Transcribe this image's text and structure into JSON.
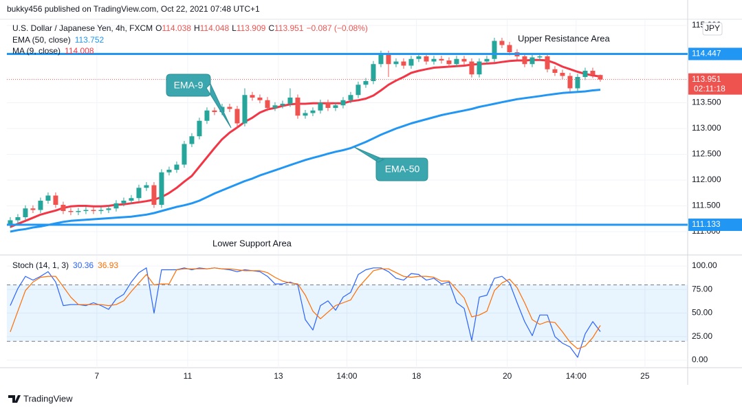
{
  "header": {
    "publisher": "bukky456 published on TradingView.com, Oct 22, 2021 07:48 UTC+1",
    "footer": "TradingView"
  },
  "chart_data": [
    {
      "type": "candlestick",
      "title": "U.S. Dollar / Japanese Yen, 4h, FXCM",
      "ohlc_letters": [
        "O",
        "H",
        "L",
        "C"
      ],
      "change_label": "−0.087 (−0.08%)",
      "currency": "JPY",
      "countdown": "02:11:18",
      "up_color": "#26a69a",
      "down_color": "#ef5350",
      "open": [
        111.13,
        111.22,
        111.28,
        111.45,
        111.42,
        111.6,
        111.7,
        111.52,
        111.4,
        111.38,
        111.4,
        111.42,
        111.4,
        111.42,
        111.45,
        111.55,
        111.6,
        111.65,
        111.85,
        111.9,
        111.52,
        112.15,
        112.2,
        112.3,
        112.7,
        112.85,
        113.15,
        113.35,
        113.32,
        113.42,
        113.38,
        113.1,
        113.65,
        113.6,
        113.55,
        113.4,
        113.45,
        113.48,
        113.6,
        113.25,
        113.3,
        113.35,
        113.5,
        113.4,
        113.45,
        113.55,
        113.65,
        113.85,
        113.92,
        114.25,
        114.45,
        114.25,
        114.3,
        114.22,
        114.35,
        114.4,
        114.3,
        114.35,
        114.32,
        114.25,
        114.35,
        114.3,
        114.05,
        114.3,
        114.35,
        114.7,
        114.62,
        114.48,
        114.4,
        114.25,
        114.38,
        114.4,
        114.15,
        114.08,
        114.02,
        113.78,
        114.0,
        114.12,
        114.038
      ],
      "high": [
        111.28,
        111.34,
        111.51,
        111.51,
        111.66,
        111.76,
        111.76,
        111.58,
        111.46,
        111.46,
        111.48,
        111.48,
        111.48,
        111.51,
        111.61,
        111.66,
        111.71,
        111.91,
        111.96,
        111.96,
        112.21,
        112.26,
        112.36,
        112.76,
        112.91,
        113.21,
        113.41,
        113.41,
        113.48,
        113.48,
        113.44,
        113.78,
        113.71,
        113.66,
        113.61,
        113.51,
        113.54,
        113.78,
        113.66,
        113.36,
        113.41,
        113.56,
        113.56,
        113.51,
        113.61,
        113.71,
        113.91,
        113.98,
        114.31,
        114.51,
        114.51,
        114.36,
        114.36,
        114.41,
        114.46,
        114.46,
        114.41,
        114.41,
        114.38,
        114.41,
        114.41,
        114.36,
        114.36,
        114.41,
        114.76,
        114.76,
        114.68,
        114.54,
        114.46,
        114.44,
        114.46,
        114.46,
        114.21,
        114.14,
        114.08,
        114.06,
        114.18,
        114.18,
        114.048
      ],
      "low": [
        111.07,
        111.16,
        111.22,
        111.36,
        111.36,
        111.54,
        111.46,
        111.34,
        111.32,
        111.32,
        111.34,
        111.34,
        111.34,
        111.36,
        111.39,
        111.49,
        111.54,
        111.59,
        111.79,
        111.46,
        111.46,
        112.09,
        112.14,
        112.24,
        112.64,
        112.79,
        113.09,
        113.26,
        113.26,
        113.32,
        113.0,
        113.04,
        113.54,
        113.49,
        113.34,
        113.34,
        113.39,
        113.42,
        113.19,
        113.19,
        113.24,
        113.29,
        113.34,
        113.34,
        113.39,
        113.49,
        113.59,
        113.79,
        113.86,
        114.19,
        114.0,
        114.19,
        114.16,
        114.16,
        114.29,
        114.24,
        114.24,
        114.26,
        114.19,
        114.19,
        114.24,
        113.99,
        113.99,
        114.24,
        114.29,
        114.56,
        114.42,
        114.34,
        114.19,
        114.19,
        114.32,
        114.09,
        114.02,
        113.96,
        113.72,
        113.72,
        113.94,
        113.98,
        113.909
      ],
      "close": [
        111.22,
        111.28,
        111.45,
        111.42,
        111.6,
        111.7,
        111.52,
        111.4,
        111.38,
        111.4,
        111.42,
        111.4,
        111.42,
        111.45,
        111.55,
        111.6,
        111.65,
        111.85,
        111.9,
        111.52,
        112.15,
        112.2,
        112.3,
        112.7,
        112.85,
        113.15,
        113.35,
        113.32,
        113.42,
        113.38,
        113.1,
        113.65,
        113.6,
        113.55,
        113.4,
        113.45,
        113.48,
        113.6,
        113.25,
        113.3,
        113.35,
        113.5,
        113.4,
        113.45,
        113.55,
        113.65,
        113.85,
        113.92,
        114.25,
        114.45,
        114.25,
        114.3,
        114.22,
        114.35,
        114.4,
        114.3,
        114.35,
        114.32,
        114.25,
        114.35,
        114.3,
        114.05,
        114.3,
        114.35,
        114.7,
        114.62,
        114.48,
        114.4,
        114.25,
        114.38,
        114.4,
        114.15,
        114.08,
        114.02,
        113.78,
        114.0,
        114.12,
        114.04,
        113.951
      ],
      "series": [
        {
          "name": "EMA (50, close)",
          "color": "#2196f3",
          "values": [
            111.0,
            111.03,
            111.05,
            111.08,
            111.1,
            111.13,
            111.16,
            111.19,
            111.21,
            111.22,
            111.23,
            111.24,
            111.25,
            111.26,
            111.27,
            111.28,
            111.29,
            111.31,
            111.33,
            111.36,
            111.4,
            111.44,
            111.48,
            111.51,
            111.55,
            111.6,
            111.67,
            111.74,
            111.8,
            111.86,
            111.92,
            111.98,
            112.03,
            112.09,
            112.14,
            112.19,
            112.24,
            112.29,
            112.34,
            112.39,
            112.43,
            112.47,
            112.51,
            112.55,
            112.58,
            112.62,
            112.68,
            112.74,
            112.81,
            112.88,
            112.94,
            113.0,
            113.05,
            113.1,
            113.14,
            113.18,
            113.22,
            113.26,
            113.29,
            113.32,
            113.35,
            113.38,
            113.42,
            113.45,
            113.48,
            113.51,
            113.54,
            113.57,
            113.59,
            113.61,
            113.63,
            113.65,
            113.67,
            113.69,
            113.7,
            113.71,
            113.72,
            113.74,
            113.752
          ]
        },
        {
          "name": "MA (9, close)",
          "color": "#f23645",
          "values": [
            111.09,
            111.15,
            111.21,
            111.27,
            111.33,
            111.37,
            111.41,
            111.46,
            111.49,
            111.5,
            111.5,
            111.49,
            111.49,
            111.5,
            111.52,
            111.53,
            111.55,
            111.57,
            111.59,
            111.62,
            111.67,
            111.75,
            111.85,
            111.97,
            112.08,
            112.26,
            112.44,
            112.62,
            112.79,
            112.92,
            113.02,
            113.13,
            113.21,
            113.31,
            113.37,
            113.4,
            113.44,
            113.47,
            113.48,
            113.48,
            113.49,
            113.49,
            113.49,
            113.49,
            113.49,
            113.53,
            113.55,
            113.58,
            113.64,
            113.74,
            113.85,
            113.93,
            114.0,
            114.08,
            114.12,
            114.15,
            114.18,
            114.19,
            114.2,
            114.21,
            114.22,
            114.24,
            114.25,
            114.26,
            114.27,
            114.29,
            114.31,
            114.32,
            114.32,
            114.33,
            114.33,
            114.32,
            114.27,
            114.2,
            114.15,
            114.1,
            114.06,
            114.03,
            114.008
          ]
        }
      ],
      "hlines": [
        {
          "value": 114.447,
          "color": "#2196f3"
        },
        {
          "value": 111.133,
          "color": "#2196f3"
        }
      ],
      "annotations": [
        "Upper Resistance Area",
        "Lower Support Area",
        "EMA-9",
        "EMA-50"
      ],
      "xlim": [
        -0.45,
        89.55
      ],
      "xticks": [
        {
          "value": 11.45,
          "label": "7"
        },
        {
          "value": 23.45,
          "label": "11"
        },
        {
          "value": 35.45,
          "label": "13"
        },
        {
          "value": 44.5,
          "label": "14:00"
        },
        {
          "value": 53.7,
          "label": "18"
        },
        {
          "value": 65.7,
          "label": "20"
        },
        {
          "value": 74.8,
          "label": "14:00"
        },
        {
          "value": 83.9,
          "label": "25"
        }
      ],
      "ylim": [
        110.56,
        115.12
      ],
      "yticks": [
        {
          "value": 111,
          "label": "111.000"
        },
        {
          "value": 111.5,
          "label": "111.500"
        },
        {
          "value": 112,
          "label": "112.000"
        },
        {
          "value": 112.5,
          "label": "112.500"
        },
        {
          "value": 113,
          "label": "113.000"
        },
        {
          "value": 113.5,
          "label": "113.500"
        },
        {
          "value": 115,
          "label": "115.000"
        }
      ],
      "grid": true
    },
    {
      "type": "line",
      "title": "Stoch (14, 1, 3)",
      "series": [
        {
          "color": "#2962ff",
          "values": [
            58,
            76,
            89,
            85,
            89,
            94,
            83,
            58,
            59,
            59,
            58,
            61,
            58,
            54,
            65,
            70,
            83,
            93,
            98,
            50,
            96,
            96,
            96,
            98,
            96,
            98,
            97,
            98,
            97,
            96,
            94,
            96,
            95,
            94,
            89,
            81,
            81,
            83,
            80,
            43,
            32,
            58,
            63,
            53,
            67,
            72,
            91,
            96,
            98,
            98,
            94,
            87,
            85,
            92,
            91,
            85,
            87,
            81,
            83,
            61,
            55,
            21,
            67,
            69,
            87,
            89,
            82,
            61,
            41,
            26,
            48,
            48,
            25,
            18,
            14,
            3,
            28,
            41,
            30.36
          ]
        },
        {
          "color": "#ff6d00",
          "values": [
            30,
            52,
            74,
            83,
            88,
            89,
            89,
            78,
            67,
            59,
            59,
            59,
            59,
            58,
            59,
            63,
            73,
            82,
            91,
            80,
            81,
            81,
            96,
            97,
            97,
            97,
            97,
            98,
            97,
            97,
            96,
            95,
            95,
            95,
            93,
            88,
            84,
            82,
            81,
            69,
            52,
            44,
            51,
            58,
            61,
            64,
            77,
            86,
            95,
            97,
            97,
            93,
            89,
            88,
            89,
            89,
            88,
            84,
            84,
            75,
            66,
            46,
            48,
            52,
            74,
            82,
            86,
            77,
            61,
            43,
            38,
            41,
            40,
            30,
            19,
            12,
            15,
            24,
            36.93
          ]
        }
      ],
      "bands": [
        20,
        80
      ],
      "xlim": [
        -0.45,
        89.55
      ],
      "ylim": [
        -8,
        111
      ],
      "yticks": [
        {
          "value": 100,
          "label": "100.00"
        },
        {
          "value": 75,
          "label": "75.00"
        },
        {
          "value": 50,
          "label": "50.00"
        },
        {
          "value": 25,
          "label": "25.00"
        },
        {
          "value": 0,
          "label": "0.00"
        }
      ],
      "grid": true
    }
  ]
}
